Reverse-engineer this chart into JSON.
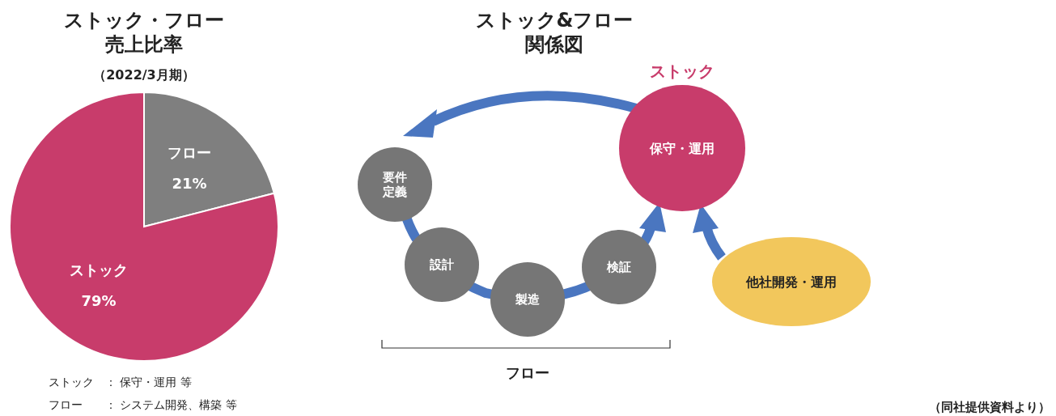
{
  "chart_data": [
    {
      "type": "pie",
      "title": "ストック・フロー売上比率",
      "subtitle": "（2022/3月期）",
      "categories": [
        "フロー",
        "ストック"
      ],
      "values": [
        21,
        79
      ],
      "colors": [
        "#7f7f7f",
        "#c83c6b"
      ],
      "value_labels": [
        "21%",
        "79%"
      ],
      "annotations": [
        "ストック　：  保守・運用 等",
        "フロー　　：  システム開発、構築 等"
      ]
    },
    {
      "type": "other",
      "title": "ストック&フロー関係図",
      "annotations": [
        "ストック",
        "保守・運用",
        "要件定義",
        "設計",
        "製造",
        "検証",
        "他社開発・運用",
        "フロー",
        "（同社提供資料より）"
      ]
    }
  ]
}
